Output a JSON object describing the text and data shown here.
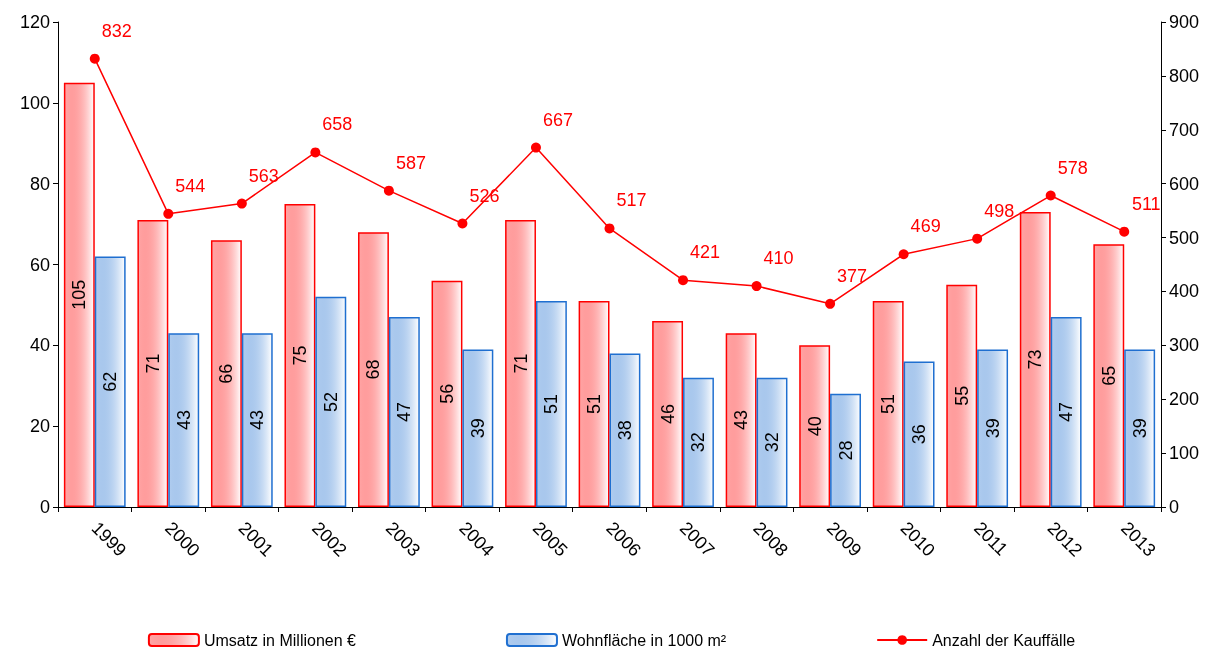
{
  "chart_data": {
    "type": "bar",
    "categories": [
      "1999",
      "2000",
      "2001",
      "2002",
      "2003",
      "2004",
      "2005",
      "2006",
      "2007",
      "2008",
      "2009",
      "2010",
      "2011",
      "2012",
      "2013"
    ],
    "series": [
      {
        "name": "Umsatz in Millionen €",
        "color": "#ff0000",
        "values": [
          105,
          71,
          66,
          75,
          68,
          56,
          71,
          51,
          46,
          43,
          40,
          51,
          55,
          73,
          65
        ]
      },
      {
        "name": "Wohnfläche in 1000 m²",
        "color": "#1f6fd0",
        "values": [
          62,
          43,
          43,
          52,
          47,
          39,
          51,
          38,
          32,
          32,
          28,
          36,
          39,
          47,
          39
        ]
      },
      {
        "name": "Anzahl der Kauffälle",
        "type": "line",
        "axis": "y2",
        "color": "#ff0000",
        "values": [
          832,
          544,
          563,
          658,
          587,
          526,
          667,
          517,
          421,
          410,
          377,
          469,
          498,
          578,
          511
        ]
      }
    ],
    "ylim": [
      0,
      120
    ],
    "yticks": [
      0,
      20,
      40,
      60,
      80,
      100,
      120
    ],
    "y2lim": [
      0,
      900
    ],
    "y2ticks": [
      0,
      100,
      200,
      300,
      400,
      500,
      600,
      700,
      800,
      900
    ],
    "data_labels": true,
    "grid": false,
    "legend": "bottom",
    "marker": "circle",
    "line_style": "solid"
  }
}
